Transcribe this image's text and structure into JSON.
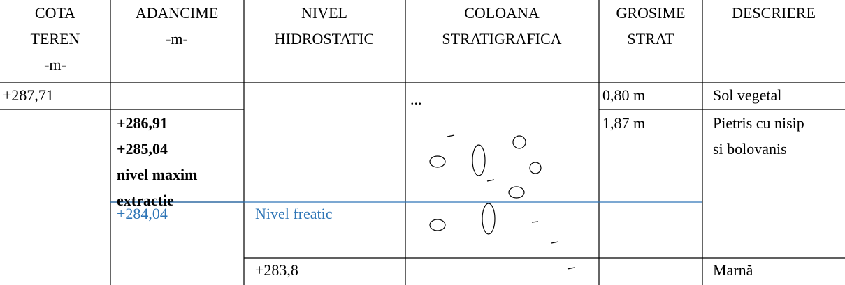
{
  "header": {
    "cota": [
      "COTA",
      "TEREN",
      "-m-"
    ],
    "adancime": [
      "ADANCIME",
      "-m-"
    ],
    "nivel": [
      "NIVEL",
      "HIDROSTATIC"
    ],
    "coloana": [
      "COLOANA",
      "STRATIGRAFICA"
    ],
    "grosime": [
      "GROSIME",
      "STRAT"
    ],
    "descriere": [
      "DESCRIERE"
    ]
  },
  "rows": [
    {
      "cota": "+287,71",
      "coloana": "...",
      "grosime": "0,80 m",
      "descriere": [
        "Sol vegetal"
      ]
    },
    {
      "adancime": [
        "+286,91",
        "+285,04",
        "nivel maxim",
        "extractie"
      ],
      "grosime": "1,87 m",
      "descriere": [
        "Pietris cu nisip",
        "si bolovanis"
      ]
    },
    {
      "adancime": "+284,04",
      "nivel": "Nivel freatic"
    },
    {
      "nivel": "+283,8",
      "descriere": [
        "Marnă"
      ]
    }
  ]
}
